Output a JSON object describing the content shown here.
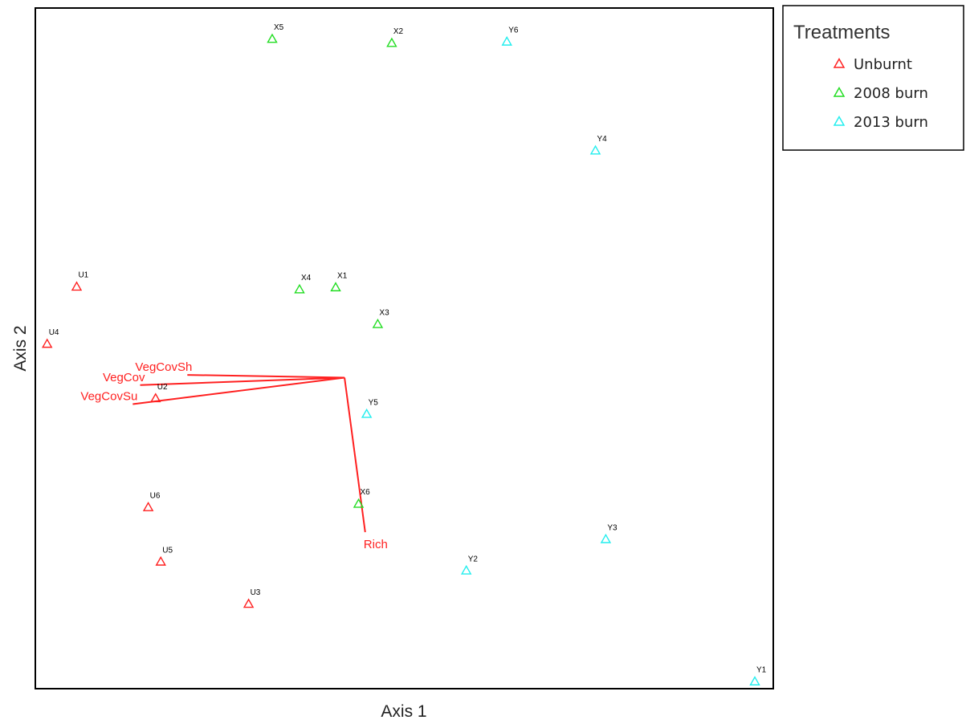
{
  "chart_data": {
    "type": "scatter",
    "xlabel": "Axis 1",
    "ylabel": "Axis 2",
    "xlim": [
      0,
      100
    ],
    "ylim": [
      0,
      100
    ],
    "grid": false,
    "marker": "triangle-open",
    "legend": {
      "title": "Treatments",
      "placement": "top-right-outside",
      "entries": [
        {
          "name": "Unburnt",
          "color": "#ff2020"
        },
        {
          "name": "2008 burn",
          "color": "#22dd22"
        },
        {
          "name": "2013 burn",
          "color": "#22eeee"
        }
      ]
    },
    "series": [
      {
        "name": "Unburnt",
        "color": "#ff2020",
        "points": [
          {
            "label": "U1",
            "x": 5.6,
            "y": 59.0
          },
          {
            "label": "U2",
            "x": 16.3,
            "y": 42.6
          },
          {
            "label": "U3",
            "x": 28.9,
            "y": 12.4
          },
          {
            "label": "U4",
            "x": 1.6,
            "y": 50.6
          },
          {
            "label": "U5",
            "x": 17.0,
            "y": 18.6
          },
          {
            "label": "U6",
            "x": 15.3,
            "y": 26.6
          }
        ]
      },
      {
        "name": "2008 burn",
        "color": "#22dd22",
        "points": [
          {
            "label": "X1",
            "x": 40.7,
            "y": 58.9
          },
          {
            "label": "X2",
            "x": 48.3,
            "y": 94.8
          },
          {
            "label": "X3",
            "x": 46.4,
            "y": 53.5
          },
          {
            "label": "X4",
            "x": 35.8,
            "y": 58.6
          },
          {
            "label": "X5",
            "x": 32.1,
            "y": 95.4
          },
          {
            "label": "X6",
            "x": 43.8,
            "y": 27.1
          }
        ]
      },
      {
        "name": "2013 burn",
        "color": "#22eeee",
        "points": [
          {
            "label": "Y1",
            "x": 97.5,
            "y": 1.0
          },
          {
            "label": "Y2",
            "x": 58.4,
            "y": 17.3
          },
          {
            "label": "Y3",
            "x": 77.3,
            "y": 21.9
          },
          {
            "label": "Y4",
            "x": 75.9,
            "y": 79.0
          },
          {
            "label": "Y5",
            "x": 44.9,
            "y": 40.3
          },
          {
            "label": "Y6",
            "x": 63.9,
            "y": 95.0
          }
        ]
      }
    ],
    "vectors": {
      "color": "#ff2020",
      "origin": {
        "x": 41.9,
        "y": 45.7
      },
      "items": [
        {
          "label": "VegCovSh",
          "x": 20.6,
          "y": 46.1
        },
        {
          "label": "VegCov",
          "x": 14.2,
          "y": 44.6
        },
        {
          "label": "VegCovSu",
          "x": 13.2,
          "y": 41.8
        },
        {
          "label": "Rich",
          "x": 44.7,
          "y": 23.0
        }
      ]
    }
  }
}
